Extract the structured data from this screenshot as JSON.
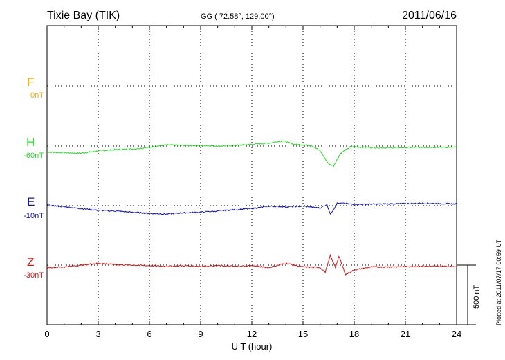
{
  "header": {
    "station": "Tixie Bay (TIK)",
    "coords": "GG ( 72.58°, 129.00°)",
    "date": "2011/06/16"
  },
  "footer": {
    "plotted": "Plotted at 2011/07/17 00:59 UT"
  },
  "colors": {
    "F": "#f5a800",
    "H": "#22dd22",
    "E": "#1010cc",
    "Z": "#dd1111"
  },
  "chart_data": {
    "type": "line",
    "title": "",
    "xlabel": "U T (hour)",
    "ylabel": "",
    "xlim": [
      0,
      24
    ],
    "x_ticks": [
      0,
      3,
      6,
      9,
      12,
      15,
      18,
      21,
      24
    ],
    "grid": true,
    "scale_bar": {
      "label": "500 nT",
      "value_nT": 500
    },
    "components": [
      {
        "key": "F",
        "name": "F",
        "baseline": "0nT"
      },
      {
        "key": "H",
        "name": "H",
        "baseline": "-60nT"
      },
      {
        "key": "E",
        "name": "E",
        "baseline": "-10nT"
      },
      {
        "key": "Z",
        "name": "Z",
        "baseline": "-30nT"
      }
    ],
    "series": [
      {
        "name": "H",
        "x": [
          0,
          1,
          2,
          3,
          4,
          5,
          6,
          7,
          8,
          9,
          10,
          11,
          12,
          13,
          13.8,
          14.5,
          15.5,
          16,
          16.5,
          16.8,
          17.2,
          17.8,
          18.5,
          20,
          22,
          24
        ],
        "values": [
          -50,
          -55,
          -60,
          -40,
          -30,
          -25,
          -10,
          10,
          5,
          5,
          0,
          5,
          15,
          25,
          45,
          15,
          5,
          -40,
          -150,
          -165,
          -60,
          -5,
          -10,
          -15,
          -10,
          -10
        ]
      },
      {
        "name": "E",
        "x": [
          0,
          1,
          2,
          3,
          4,
          5,
          6,
          7,
          8,
          9,
          10,
          11,
          12,
          13,
          14,
          15,
          16,
          16.4,
          16.6,
          16.8,
          17,
          17.3,
          18,
          20,
          22,
          24
        ],
        "values": [
          5,
          -10,
          -25,
          -40,
          -45,
          -55,
          -65,
          -70,
          -60,
          -55,
          -45,
          -35,
          -25,
          -5,
          -10,
          -5,
          -20,
          10,
          -70,
          -30,
          20,
          20,
          10,
          15,
          20,
          15
        ]
      },
      {
        "name": "Z",
        "x": [
          0,
          1,
          2,
          3,
          4,
          5,
          6,
          7,
          8,
          9,
          10,
          11,
          12,
          13,
          14,
          15,
          16,
          16.3,
          16.6,
          16.9,
          17.1,
          17.5,
          18,
          19,
          20,
          22,
          24
        ],
        "values": [
          -20,
          -15,
          0,
          15,
          5,
          0,
          -5,
          -10,
          -5,
          -10,
          -5,
          -10,
          -5,
          -20,
          15,
          -15,
          -20,
          -60,
          80,
          -20,
          75,
          -80,
          -40,
          -15,
          -15,
          -10,
          -10
        ]
      }
    ]
  }
}
